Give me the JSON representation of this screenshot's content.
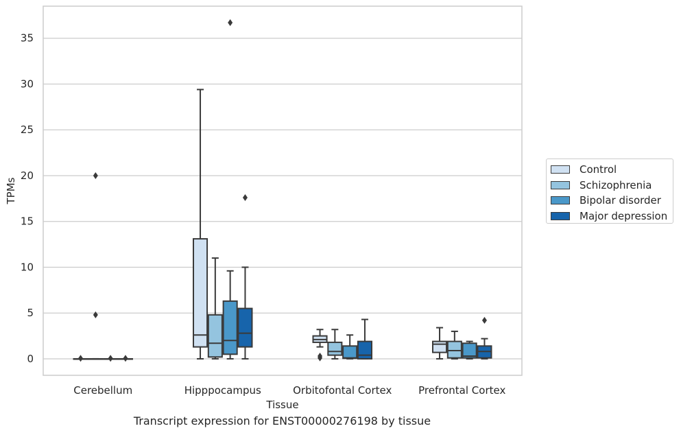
{
  "title": "Transcript expression for ENST00000276198 by tissue",
  "chart_data": {
    "type": "box",
    "xlabel": "Tissue",
    "ylabel": "TPMs",
    "ylim": [
      -1.8,
      38.5
    ],
    "yticks": [
      0,
      5,
      10,
      15,
      20,
      25,
      30,
      35
    ],
    "categories": [
      "Cerebellum",
      "Hipppocampus",
      "Orbitofontal Cortex",
      "Prefrontal Cortex"
    ],
    "grid": "horizontal",
    "legend_position": "right",
    "series": [
      {
        "name": "Control",
        "color": "#d0e1f2",
        "boxes": [
          {
            "q1": 0,
            "median": 0,
            "q3": 0,
            "whisker_low": 0,
            "whisker_high": 0,
            "outliers": [
              0.05
            ]
          },
          {
            "q1": 1.3,
            "median": 2.6,
            "q3": 13.1,
            "whisker_low": 0,
            "whisker_high": 29.4,
            "outliers": []
          },
          {
            "q1": 1.8,
            "median": 2.1,
            "q3": 2.5,
            "whisker_low": 1.3,
            "whisker_high": 3.2,
            "outliers": [
              0.1,
              0.3
            ]
          },
          {
            "q1": 0.7,
            "median": 1.6,
            "q3": 1.9,
            "whisker_low": 0,
            "whisker_high": 3.4,
            "outliers": []
          }
        ]
      },
      {
        "name": "Schizophrenia",
        "color": "#94c4df",
        "boxes": [
          {
            "q1": 0,
            "median": 0,
            "q3": 0,
            "whisker_low": 0,
            "whisker_high": 0,
            "outliers": [
              4.8,
              20.0
            ]
          },
          {
            "q1": 0.2,
            "median": 1.7,
            "q3": 4.8,
            "whisker_low": 0,
            "whisker_high": 11.0,
            "outliers": []
          },
          {
            "q1": 0.4,
            "median": 0.8,
            "q3": 1.8,
            "whisker_low": 0,
            "whisker_high": 3.2,
            "outliers": []
          },
          {
            "q1": 0.1,
            "median": 0.9,
            "q3": 1.9,
            "whisker_low": 0,
            "whisker_high": 3.0,
            "outliers": []
          }
        ]
      },
      {
        "name": "Bipolar disorder",
        "color": "#4a98c9",
        "boxes": [
          {
            "q1": 0,
            "median": 0,
            "q3": 0,
            "whisker_low": 0,
            "whisker_high": 0,
            "outliers": [
              0.05
            ]
          },
          {
            "q1": 0.5,
            "median": 2.0,
            "q3": 6.3,
            "whisker_low": 0,
            "whisker_high": 9.6,
            "outliers": [
              36.7
            ]
          },
          {
            "q1": 0.05,
            "median": 0.1,
            "q3": 1.4,
            "whisker_low": 0,
            "whisker_high": 2.6,
            "outliers": []
          },
          {
            "q1": 0.1,
            "median": 0.3,
            "q3": 1.7,
            "whisker_low": 0,
            "whisker_high": 1.9,
            "outliers": []
          }
        ]
      },
      {
        "name": "Major depression",
        "color": "#1764ab",
        "boxes": [
          {
            "q1": 0,
            "median": 0,
            "q3": 0,
            "whisker_low": 0,
            "whisker_high": 0,
            "outliers": [
              0.05
            ]
          },
          {
            "q1": 1.3,
            "median": 2.8,
            "q3": 5.5,
            "whisker_low": 0,
            "whisker_high": 10.0,
            "outliers": [
              17.6
            ]
          },
          {
            "q1": 0,
            "median": 0.4,
            "q3": 1.9,
            "whisker_low": 0,
            "whisker_high": 4.3,
            "outliers": []
          },
          {
            "q1": 0.1,
            "median": 0.8,
            "q3": 1.4,
            "whisker_low": 0,
            "whisker_high": 2.2,
            "outliers": [
              4.2
            ]
          }
        ]
      }
    ]
  }
}
